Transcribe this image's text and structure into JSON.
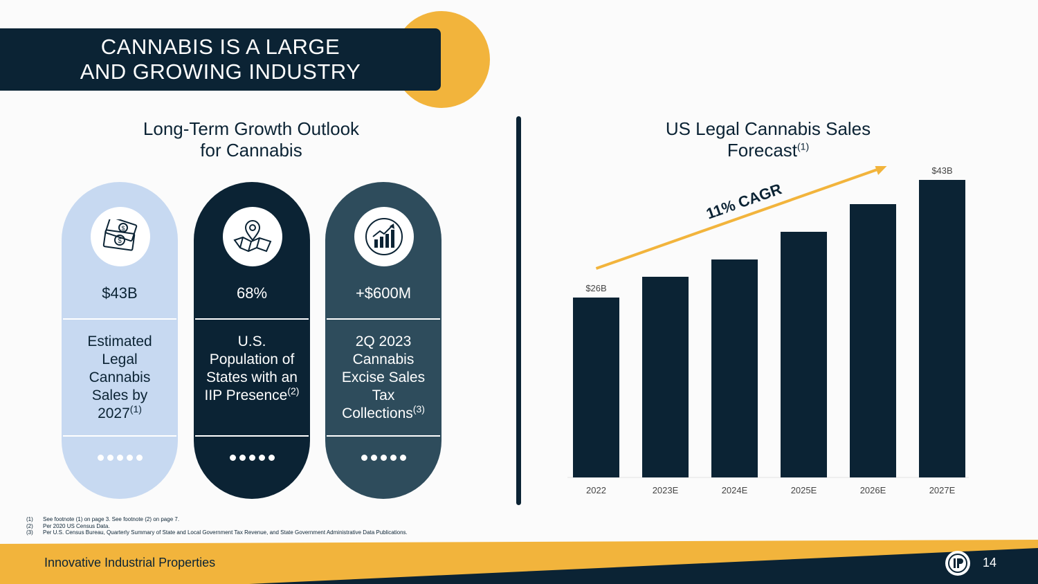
{
  "title": {
    "line1": "CANNABIS IS A LARGE",
    "line2": "AND GROWING INDUSTRY"
  },
  "left_section": {
    "title_line1": "Long-Term Growth Outlook",
    "title_line2": "for Cannabis"
  },
  "cards": [
    {
      "icon": "money-icon",
      "metric": "$43B",
      "desc_lines": [
        "Estimated",
        "Legal",
        "Cannabis",
        "Sales by"
      ],
      "desc_last": "2027",
      "sup": "(1)"
    },
    {
      "icon": "map-pin-icon",
      "metric": "68%",
      "desc_lines": [
        "U.S.",
        "Population of",
        "States with an"
      ],
      "desc_last": "IIP Presence",
      "sup": "(2)"
    },
    {
      "icon": "growth-chart-icon",
      "metric": "+$600M",
      "desc_lines": [
        "2Q 2023",
        "Cannabis",
        "Excise Sales",
        "Tax"
      ],
      "desc_last": "Collections",
      "sup": "(3)"
    }
  ],
  "right_section": {
    "title_line1": "US Legal Cannabis Sales",
    "title_line2": "Forecast",
    "sup": "(1)"
  },
  "chart_data": {
    "type": "bar",
    "categories": [
      "2022",
      "2023E",
      "2024E",
      "2025E",
      "2026E",
      "2027E"
    ],
    "values": [
      26,
      29,
      31.5,
      35.5,
      39.5,
      43
    ],
    "data_labels": [
      "$26B",
      "",
      "",
      "",
      "",
      "$43B"
    ],
    "annotation": "11% CAGR",
    "ylim": [
      0,
      45
    ],
    "bar_color": "#0b2334",
    "arrow_color": "#f2b43c"
  },
  "footnotes": [
    {
      "num": "(1)",
      "text": "See footnote (1) on page 3. See footnote (2) on page 7."
    },
    {
      "num": "(2)",
      "text": "Per 2020 US Census Data."
    },
    {
      "num": "(3)",
      "text": "Per U.S. Census Bureau, Quarterly Summary of State and Local Government Tax Revenue, and State Government Administrative Data Publications."
    }
  ],
  "footer": {
    "company": "Innovative Industrial Properties",
    "page": "14"
  },
  "colors": {
    "navy": "#0b2334",
    "gold": "#f2b43c",
    "light_blue": "#c7d9f1",
    "slate": "#2e4c5c"
  }
}
